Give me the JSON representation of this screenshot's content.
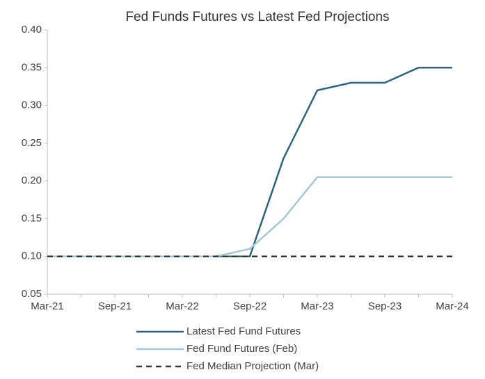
{
  "chart_data": {
    "type": "line",
    "title": "Fed Funds Futures vs Latest Fed Projections",
    "categories": [
      "Mar-21",
      null,
      "Sep-21",
      null,
      "Mar-22",
      null,
      "Sep-22",
      null,
      "Mar-23",
      null,
      "Sep-23",
      null,
      "Mar-24"
    ],
    "series": [
      {
        "name": "Latest Fed Fund Futures",
        "color": "#2e6380",
        "dash": false,
        "values": [
          0.1,
          0.1,
          0.1,
          0.1,
          0.1,
          0.1,
          0.1,
          0.23,
          0.32,
          0.33,
          0.33,
          0.35,
          0.35
        ]
      },
      {
        "name": "Fed Fund Futures (Feb)",
        "color": "#a6c6d6",
        "dash": false,
        "values": [
          0.1,
          0.1,
          0.1,
          0.1,
          0.1,
          0.1,
          0.11,
          0.15,
          0.205,
          0.205,
          0.205,
          0.205,
          0.205
        ]
      },
      {
        "name": "Fed Median Projection (Mar)",
        "color": "#333333",
        "dash": true,
        "values": [
          0.1,
          0.1,
          0.1,
          0.1,
          0.1,
          0.1,
          0.1,
          0.1,
          0.1,
          0.1,
          0.1,
          0.1,
          0.1
        ]
      }
    ],
    "ylim": [
      0.05,
      0.4
    ],
    "yticks": [
      {
        "value": 0.05,
        "label": "0.05"
      },
      {
        "value": 0.1,
        "label": "0.10"
      },
      {
        "value": 0.15,
        "label": "0.15"
      },
      {
        "value": 0.2,
        "label": "0.20"
      },
      {
        "value": 0.25,
        "label": "0.25"
      },
      {
        "value": 0.3,
        "label": "0.30"
      },
      {
        "value": 0.35,
        "label": "0.35"
      },
      {
        "value": 0.4,
        "label": "0.40"
      }
    ],
    "grid": false,
    "legend": "bottom"
  }
}
